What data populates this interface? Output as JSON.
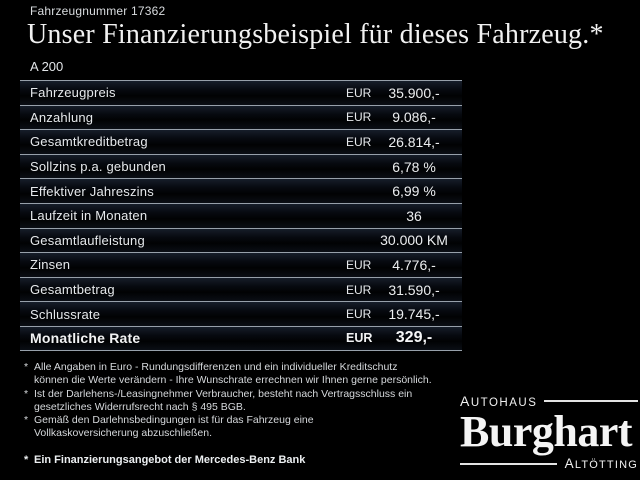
{
  "page": {
    "background": "#000000",
    "text_color": "#e9ebed",
    "separator_line_color": "#97a0aa"
  },
  "header": {
    "vehicle_number": "Fahrzeugnummer 17362",
    "title": "Unser Finanzierungsbeispiel für dieses Fahrzeug.*",
    "model": "A 200"
  },
  "finance_table": {
    "rows": [
      {
        "label": "Fahrzeugpreis",
        "currency": "EUR",
        "value": "35.900,-",
        "emphasis": false
      },
      {
        "label": "Anzahlung",
        "currency": "EUR",
        "value": "9.086,-",
        "emphasis": false
      },
      {
        "label": "Gesamtkreditbetrag",
        "currency": "EUR",
        "value": "26.814,-",
        "emphasis": false
      },
      {
        "label": "Sollzins p.a. gebunden",
        "currency": "",
        "value": "6,78 %",
        "emphasis": false
      },
      {
        "label": "Effektiver Jahreszins",
        "currency": "",
        "value": "6,99 %",
        "emphasis": false
      },
      {
        "label": "Laufzeit in Monaten",
        "currency": "",
        "value": "36",
        "emphasis": false
      },
      {
        "label": "Gesamtlaufleistung",
        "currency": "",
        "value": "30.000 KM",
        "emphasis": false
      },
      {
        "label": "Zinsen",
        "currency": "EUR",
        "value": "4.776,-",
        "emphasis": false
      },
      {
        "label": "Gesamtbetrag",
        "currency": "EUR",
        "value": "31.590,-",
        "emphasis": false
      },
      {
        "label": "Schlussrate",
        "currency": "EUR",
        "value": "19.745,-",
        "emphasis": false
      },
      {
        "label": "Monatliche Rate",
        "currency": "EUR",
        "value": "329,-",
        "emphasis": true
      }
    ]
  },
  "footnotes": [
    {
      "marker": "*",
      "bold": false,
      "lines": [
        "Alle Angaben in Euro - Rundungsdifferenzen und ein individueller Kreditschutz",
        "können die Werte verändern - Ihre Wunschrate errechnen wir Ihnen gerne persönlich."
      ]
    },
    {
      "marker": "*",
      "bold": false,
      "lines": [
        "Ist der Darlehens-/Leasingnehmer Verbraucher, besteht nach Vertragsschluss ein",
        "gesetzliches Widerrufsrecht nach § 495 BGB."
      ]
    },
    {
      "marker": "*",
      "bold": false,
      "lines": [
        "Gemäß den Darlehnsbedingungen ist für das Fahrzeug eine",
        "Vollkaskoversicherung abzuschließen."
      ]
    },
    {
      "marker": "*",
      "bold": true,
      "lines": [
        "Ein Finanzierungsangebot der Mercedes-Benz Bank"
      ]
    }
  ],
  "dealer_logo": {
    "top_label": "AUTOHAUS",
    "name": "Burghart",
    "bottom_label": "ALTÖTTING"
  }
}
